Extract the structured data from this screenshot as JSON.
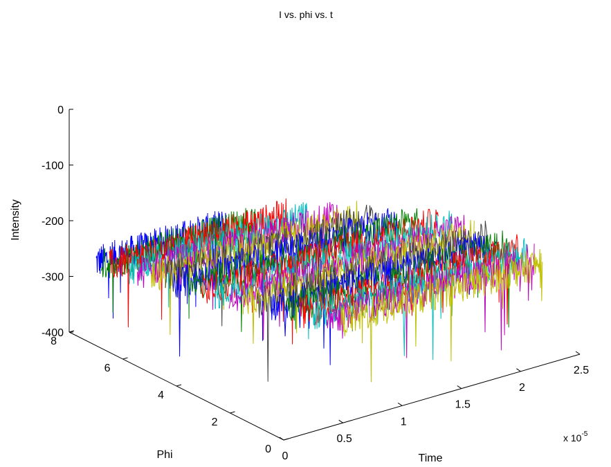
{
  "chart_data": {
    "type": "line",
    "title": "I vs. phi vs. t",
    "xlabel": "Time",
    "ylabel": "Phi",
    "zlabel": "Intensity",
    "x_multiplier": "x 10",
    "x_multiplier_exp": "-5",
    "xlim": [
      0,
      2.5e-05
    ],
    "ylim": [
      0,
      8
    ],
    "zlim": [
      -400,
      0
    ],
    "x_ticks": [
      "0",
      "0.5",
      "1",
      "1.5",
      "2",
      "2.5"
    ],
    "x_tick_values": [
      0,
      5e-06,
      1e-05,
      1.5e-05,
      2e-05,
      2.5e-05
    ],
    "y_ticks": [
      "0",
      "2",
      "4",
      "6",
      "8"
    ],
    "y_tick_values": [
      0,
      2,
      4,
      6,
      8
    ],
    "z_ticks": [
      "0",
      "-100",
      "-200",
      "-300",
      "-400"
    ],
    "z_tick_values": [
      0,
      -100,
      -200,
      -300,
      -400
    ],
    "grid": false,
    "series_colors": [
      "#0000ff",
      "#008000",
      "#ff0000",
      "#00bfbf",
      "#bf00bf",
      "#bfbf00",
      "#404040"
    ],
    "series": [
      {
        "phi": 7.0,
        "t_start": 0.0,
        "t_end": 1.1e-05,
        "mean_intensity": -250,
        "noise": 30
      },
      {
        "phi": 6.8,
        "t_start": 0.0,
        "t_end": 1.3e-05,
        "mean_intensity": -250,
        "noise": 30
      },
      {
        "phi": 6.5,
        "t_start": 0.0,
        "t_end": 1.5e-05,
        "mean_intensity": -245,
        "noise": 30
      },
      {
        "phi": 6.2,
        "t_start": 1e-06,
        "t_end": 1.6e-05,
        "mean_intensity": -248,
        "noise": 30
      },
      {
        "phi": 5.9,
        "t_start": 1e-06,
        "t_end": 1.8e-05,
        "mean_intensity": -250,
        "noise": 30
      },
      {
        "phi": 5.6,
        "t_start": 1.5e-06,
        "t_end": 1.9e-05,
        "mean_intensity": -252,
        "noise": 30
      },
      {
        "phi": 5.3,
        "t_start": 2e-06,
        "t_end": 2e-05,
        "mean_intensity": -250,
        "noise": 30
      },
      {
        "phi": 5.0,
        "t_start": 2e-06,
        "t_end": 2.1e-05,
        "mean_intensity": -255,
        "noise": 30
      },
      {
        "phi": 4.7,
        "t_start": 2.5e-06,
        "t_end": 2.2e-05,
        "mean_intensity": -255,
        "noise": 30
      },
      {
        "phi": 4.4,
        "t_start": 3e-06,
        "t_end": 2.3e-05,
        "mean_intensity": -258,
        "noise": 30
      },
      {
        "phi": 4.1,
        "t_start": 3.5e-06,
        "t_end": 2.35e-05,
        "mean_intensity": -258,
        "noise": 30
      },
      {
        "phi": 3.8,
        "t_start": 4e-06,
        "t_end": 2.4e-05,
        "mean_intensity": -260,
        "noise": 30
      },
      {
        "phi": 3.5,
        "t_start": 4.5e-06,
        "t_end": 2.4e-05,
        "mean_intensity": -262,
        "noise": 30
      },
      {
        "phi": 3.2,
        "t_start": 5e-06,
        "t_end": 2.45e-05,
        "mean_intensity": -262,
        "noise": 30
      },
      {
        "phi": 2.9,
        "t_start": 5.5e-06,
        "t_end": 2.45e-05,
        "mean_intensity": -265,
        "noise": 30
      },
      {
        "phi": 2.6,
        "t_start": 6e-06,
        "t_end": 2.5e-05,
        "mean_intensity": -265,
        "noise": 30
      },
      {
        "phi": 2.3,
        "t_start": 6.5e-06,
        "t_end": 2.5e-05,
        "mean_intensity": -268,
        "noise": 30
      },
      {
        "phi": 2.0,
        "t_start": 7e-06,
        "t_end": 2.5e-05,
        "mean_intensity": -268,
        "noise": 30
      },
      {
        "phi": 1.7,
        "t_start": 7.5e-06,
        "t_end": 2.5e-05,
        "mean_intensity": -270,
        "noise": 30
      },
      {
        "phi": 1.4,
        "t_start": 8e-06,
        "t_end": 2.5e-05,
        "mean_intensity": -270,
        "noise": 30
      }
    ]
  }
}
